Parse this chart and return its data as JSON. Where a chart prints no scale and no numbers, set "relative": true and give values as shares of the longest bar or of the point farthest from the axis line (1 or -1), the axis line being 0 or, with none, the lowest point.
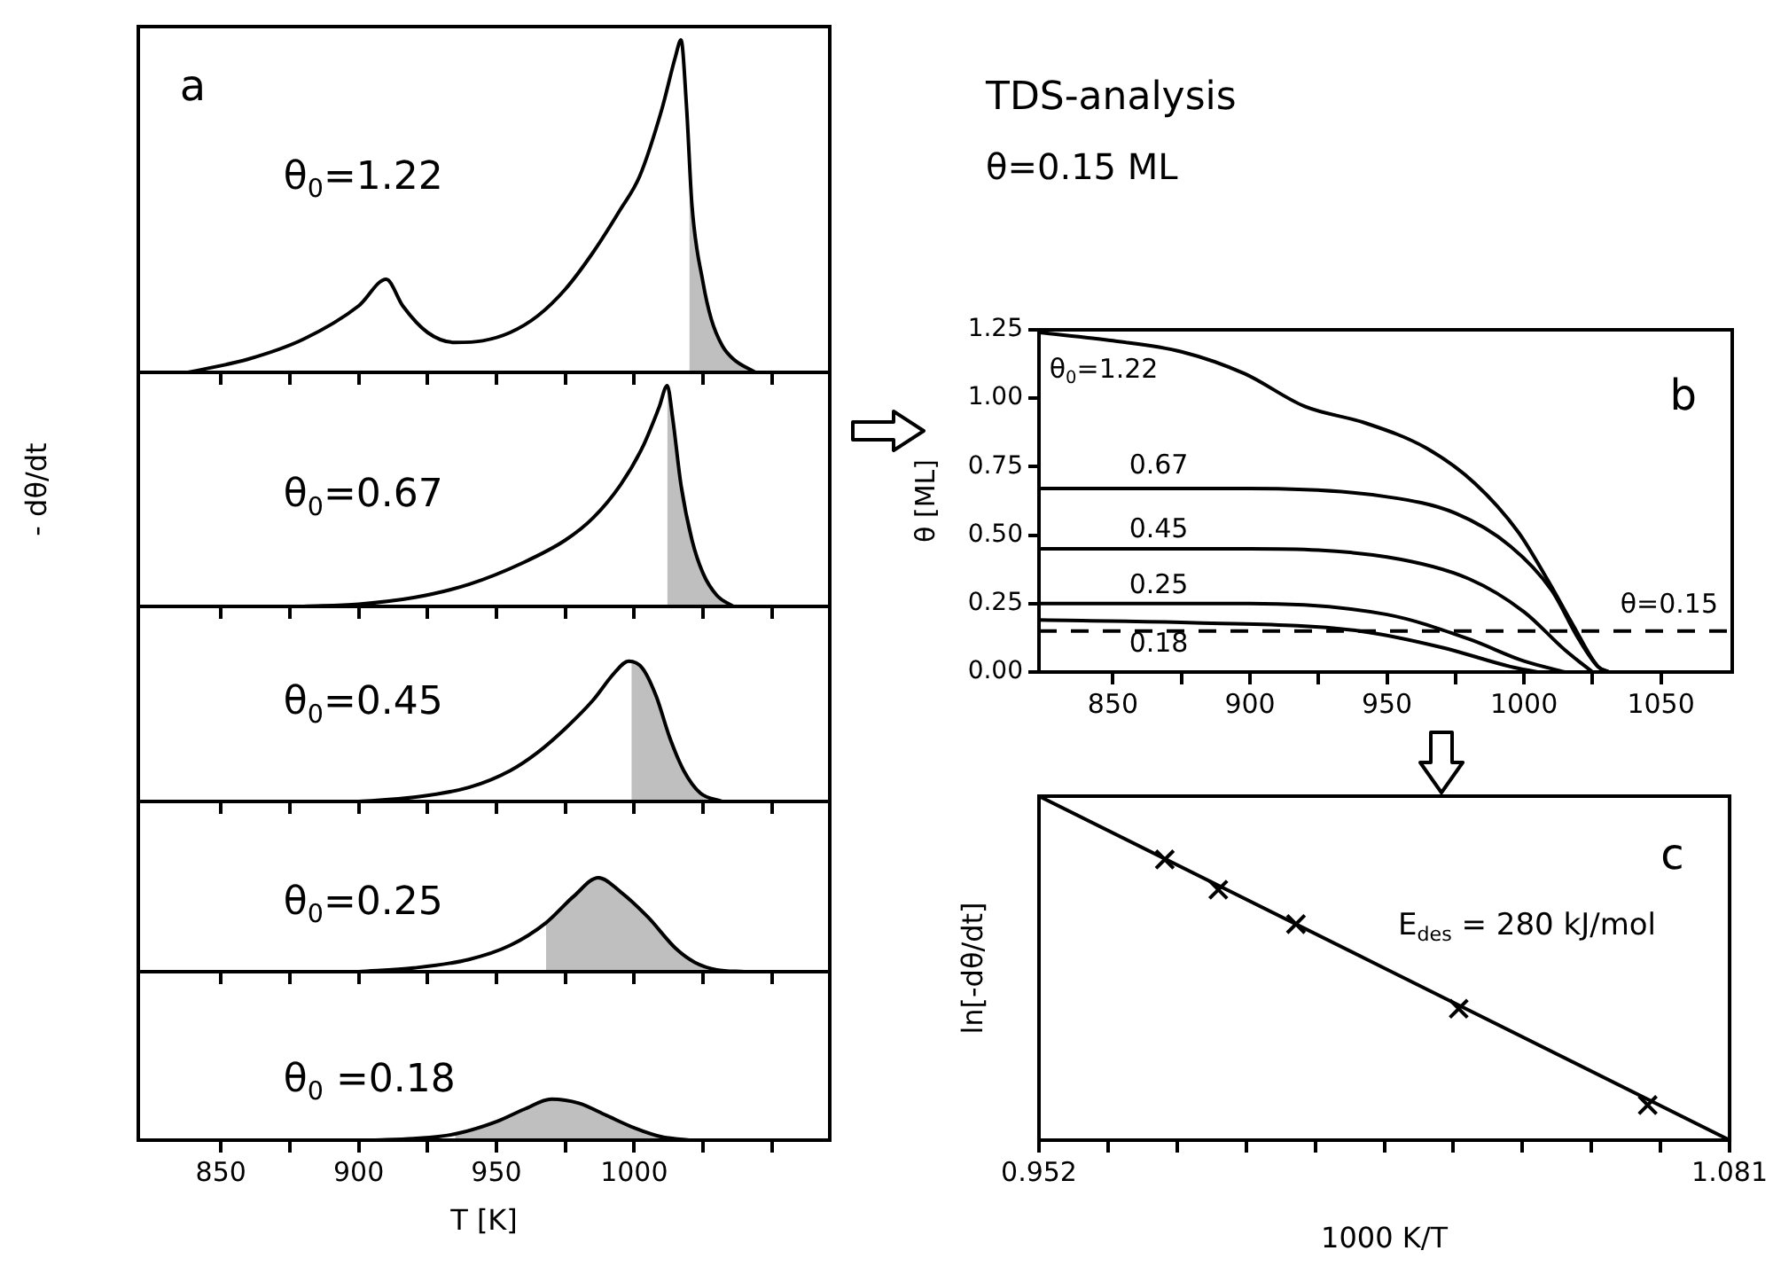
{
  "chart_data": [
    {
      "type": "line",
      "relative": true,
      "annotations": [
        "a"
      ],
      "xlim": [
        820,
        1071
      ],
      "xticks": [
        850,
        {
          "value": 875,
          "label": null
        },
        900,
        {
          "value": 925,
          "label": null
        },
        950,
        {
          "value": 975,
          "label": null
        },
        1000,
        {
          "value": 1025,
          "label": null
        },
        {
          "value": 1050,
          "label": null
        }
      ],
      "tick_labels": false,
      "series": [
        {
          "name": "θ$_{0}$=1.22",
          "color": "#000000",
          "x": [
            838,
            860,
            880,
            900,
            910,
            916,
            925,
            935,
            945,
            955,
            965,
            975,
            985,
            995,
            1002,
            1010,
            1015,
            1017,
            1019,
            1021,
            1025,
            1028,
            1032,
            1036,
            1044
          ],
          "values": [
            0,
            0.04,
            0.1,
            0.2,
            0.28,
            0.2,
            0.12,
            0.09,
            0.095,
            0.12,
            0.17,
            0.25,
            0.36,
            0.49,
            0.59,
            0.79,
            0.95,
            1,
            0.8,
            0.5,
            0.27,
            0.16,
            0.08,
            0.04,
            0
          ]
        },
        {
          "type": "area",
          "color": "#000000",
          "x": [
            1020,
            1021,
            1025,
            1028,
            1032,
            1036,
            1044
          ],
          "values": [
            0.65,
            0.5,
            0.27,
            0.16,
            0.08,
            0.04,
            0
          ]
        }
      ]
    },
    {
      "type": "line",
      "relative": true,
      "ylabel": "- dθ/dt",
      "xlim": [
        820,
        1071
      ],
      "xticks": [
        850,
        {
          "value": 875,
          "label": null
        },
        900,
        {
          "value": 925,
          "label": null
        },
        950,
        {
          "value": 975,
          "label": null
        },
        1000,
        {
          "value": 1025,
          "label": null
        },
        {
          "value": 1050,
          "label": null
        }
      ],
      "tick_labels": false,
      "series": [
        {
          "name": "θ$_{0}$=0.67",
          "color": "#000000",
          "x": [
            880,
            900,
            920,
            940,
            960,
            975,
            985,
            995,
            1003,
            1009,
            1012,
            1014,
            1017,
            1021,
            1025,
            1030,
            1036
          ],
          "values": [
            0,
            0.01,
            0.04,
            0.1,
            0.2,
            0.3,
            0.4,
            0.55,
            0.72,
            0.9,
            1,
            0.85,
            0.55,
            0.3,
            0.15,
            0.05,
            0
          ]
        },
        {
          "type": "area",
          "color": "#000000",
          "x": [
            1012,
            1014,
            1017,
            1021,
            1025,
            1030,
            1036
          ],
          "values": [
            1,
            0.85,
            0.55,
            0.3,
            0.15,
            0.05,
            0
          ]
        }
      ]
    },
    {
      "type": "line",
      "relative": true,
      "xlim": [
        820,
        1071
      ],
      "xticks": [
        850,
        {
          "value": 875,
          "label": null
        },
        900,
        {
          "value": 925,
          "label": null
        },
        950,
        {
          "value": 975,
          "label": null
        },
        1000,
        {
          "value": 1025,
          "label": null
        },
        {
          "value": 1050,
          "label": null
        }
      ],
      "tick_labels": false,
      "series": [
        {
          "name": "θ$_{0}$=0.45",
          "color": "#000000",
          "x": [
            900,
            920,
            940,
            955,
            965,
            975,
            985,
            993,
            998,
            1003,
            1008,
            1013,
            1018,
            1024,
            1032
          ],
          "values": [
            0,
            0.03,
            0.1,
            0.22,
            0.35,
            0.52,
            0.72,
            0.92,
            1,
            0.95,
            0.75,
            0.45,
            0.22,
            0.06,
            0
          ]
        },
        {
          "type": "area",
          "color": "#000000",
          "x": [
            999,
            1003,
            1008,
            1013,
            1018,
            1024,
            1032
          ],
          "values": [
            0.99,
            0.95,
            0.75,
            0.45,
            0.22,
            0.06,
            0
          ]
        }
      ]
    },
    {
      "type": "line",
      "relative": true,
      "xlim": [
        820,
        1071
      ],
      "xticks": [
        850,
        {
          "value": 875,
          "label": null
        },
        900,
        {
          "value": 925,
          "label": null
        },
        950,
        {
          "value": 975,
          "label": null
        },
        1000,
        {
          "value": 1025,
          "label": null
        },
        {
          "value": 1050,
          "label": null
        }
      ],
      "tick_labels": false,
      "series": [
        {
          "name": "θ$_{0}$=0.25",
          "color": "#000000",
          "x": [
            900,
            920,
            940,
            955,
            968,
            978,
            987,
            995,
            1005,
            1015,
            1022,
            1030,
            1040
          ],
          "values": [
            0,
            0.04,
            0.13,
            0.28,
            0.52,
            0.8,
            1,
            0.85,
            0.58,
            0.25,
            0.1,
            0.02,
            0
          ]
        },
        {
          "type": "area",
          "color": "#000000",
          "x": [
            968,
            978,
            987,
            995,
            1005,
            1015,
            1022,
            1030,
            1040
          ],
          "values": [
            0.52,
            0.8,
            1,
            0.85,
            0.58,
            0.25,
            0.1,
            0.02,
            0
          ]
        }
      ]
    },
    {
      "type": "line",
      "relative": true,
      "xlabel": "T [K]",
      "xlim": [
        820,
        1071
      ],
      "xticks": [
        850,
        {
          "value": 875,
          "label": null
        },
        900,
        {
          "value": 925,
          "label": null
        },
        950,
        {
          "value": 975,
          "label": null
        },
        1000,
        {
          "value": 1025,
          "label": null
        },
        {
          "value": 1050,
          "label": null
        }
      ],
      "tick_labels": "x",
      "series": [
        {
          "name": "θ$_{0}$ =0.18",
          "color": "#000000",
          "x": [
            905,
            920,
            935,
            950,
            960,
            970,
            980,
            990,
            1000,
            1010,
            1020
          ],
          "values": [
            0,
            0.04,
            0.15,
            0.45,
            0.75,
            1,
            0.9,
            0.6,
            0.3,
            0.08,
            0
          ]
        },
        {
          "type": "area",
          "color": "#000000",
          "x": [
            935,
            950,
            960,
            970,
            980,
            990,
            1000,
            1010,
            1020
          ],
          "values": [
            0.15,
            0.45,
            0.75,
            1,
            0.9,
            0.6,
            0.3,
            0.08,
            0
          ]
        }
      ]
    },
    {
      "type": "line",
      "title": "TDS-analysis",
      "subtitle": "θ=0.15 ML",
      "ylabel": "θ [ML]",
      "annotations": [
        "b"
      ],
      "xlim": [
        823,
        1076
      ],
      "xticks": [
        850,
        {
          "value": 875,
          "label": null
        },
        900,
        {
          "value": 925,
          "label": null
        },
        950,
        {
          "value": 975,
          "label": null
        },
        1000,
        {
          "value": 1025,
          "label": null
        },
        1050
      ],
      "ylim": [
        0,
        1.25
      ],
      "yticks": [
        {
          "value": 0,
          "label": "0.00"
        },
        {
          "value": 0.25,
          "label": "0.25"
        },
        {
          "value": 0.5,
          "label": "0.50"
        },
        {
          "value": 0.75,
          "label": "0.75"
        },
        {
          "value": 1,
          "label": "1.00"
        },
        {
          "value": 1.25,
          "label": "1.25"
        }
      ],
      "ref_lines": [
        {
          "axis": "y",
          "value": 0.15,
          "label": "θ=0.15",
          "line_style": "dashed"
        }
      ],
      "series": [
        {
          "name": "θ$_{0}$=1.22",
          "color": "#000000",
          "x": [
            823,
            850,
            875,
            898,
            920,
            942,
            964,
            982,
            998,
            1009,
            1018,
            1027,
            1031
          ],
          "values": [
            1.24,
            1.21,
            1.17,
            1.09,
            0.97,
            0.91,
            0.82,
            0.69,
            0.51,
            0.33,
            0.17,
            0.02,
            0
          ]
        },
        {
          "name": "0.67",
          "color": "#000000",
          "x": [
            823,
            900,
            950,
            975,
            995,
            1010,
            1020,
            1027,
            1031
          ],
          "values": [
            0.67,
            0.67,
            0.64,
            0.58,
            0.46,
            0.3,
            0.12,
            0.02,
            0
          ]
        },
        {
          "name": "0.45",
          "color": "#000000",
          "x": [
            823,
            900,
            950,
            980,
            1000,
            1015,
            1025
          ],
          "values": [
            0.45,
            0.45,
            0.42,
            0.34,
            0.22,
            0.08,
            0
          ]
        },
        {
          "name": "0.25",
          "color": "#000000",
          "x": [
            823,
            900,
            950,
            980,
            1000,
            1015
          ],
          "values": [
            0.25,
            0.25,
            0.21,
            0.12,
            0.04,
            0
          ]
        },
        {
          "name": "0.18",
          "color": "#000000",
          "x": [
            823,
            880,
            940,
            970,
            995,
            1005
          ],
          "values": [
            0.19,
            0.18,
            0.15,
            0.09,
            0.02,
            0
          ]
        }
      ]
    },
    {
      "type": "scatter",
      "relative": true,
      "marker": "cross",
      "xlabel": "1000 K/T",
      "ylabel": "ln[-dθ/dt]",
      "annotations": [
        "c",
        "E$_{des}$ = 280 kJ/mol"
      ],
      "xlim": [
        0.952,
        1.081
      ],
      "xticks": [
        0.952,
        {
          "value": 0.9649,
          "label": null
        },
        {
          "value": 0.9778,
          "label": null
        },
        {
          "value": 0.9907,
          "label": null
        },
        {
          "value": 1.0036,
          "label": null
        },
        {
          "value": 1.0165,
          "label": null
        },
        {
          "value": 1.0294,
          "label": null
        },
        {
          "value": 1.0423,
          "label": null
        },
        {
          "value": 1.0552,
          "label": null
        },
        {
          "value": 1.0681,
          "label": null
        },
        1.081
      ],
      "series": [
        {
          "color": "#000000",
          "x": [
            0.9755,
            0.9855,
            1.0,
            1.0304,
            1.0657
          ],
          "values": [
            0.816,
            0.728,
            0.628,
            0.382,
            0.102
          ]
        },
        {
          "type": "line",
          "marker": "none",
          "color": "#000000",
          "x": [
            0.952,
            1.081
          ],
          "values": [
            1,
            0
          ]
        }
      ]
    }
  ]
}
